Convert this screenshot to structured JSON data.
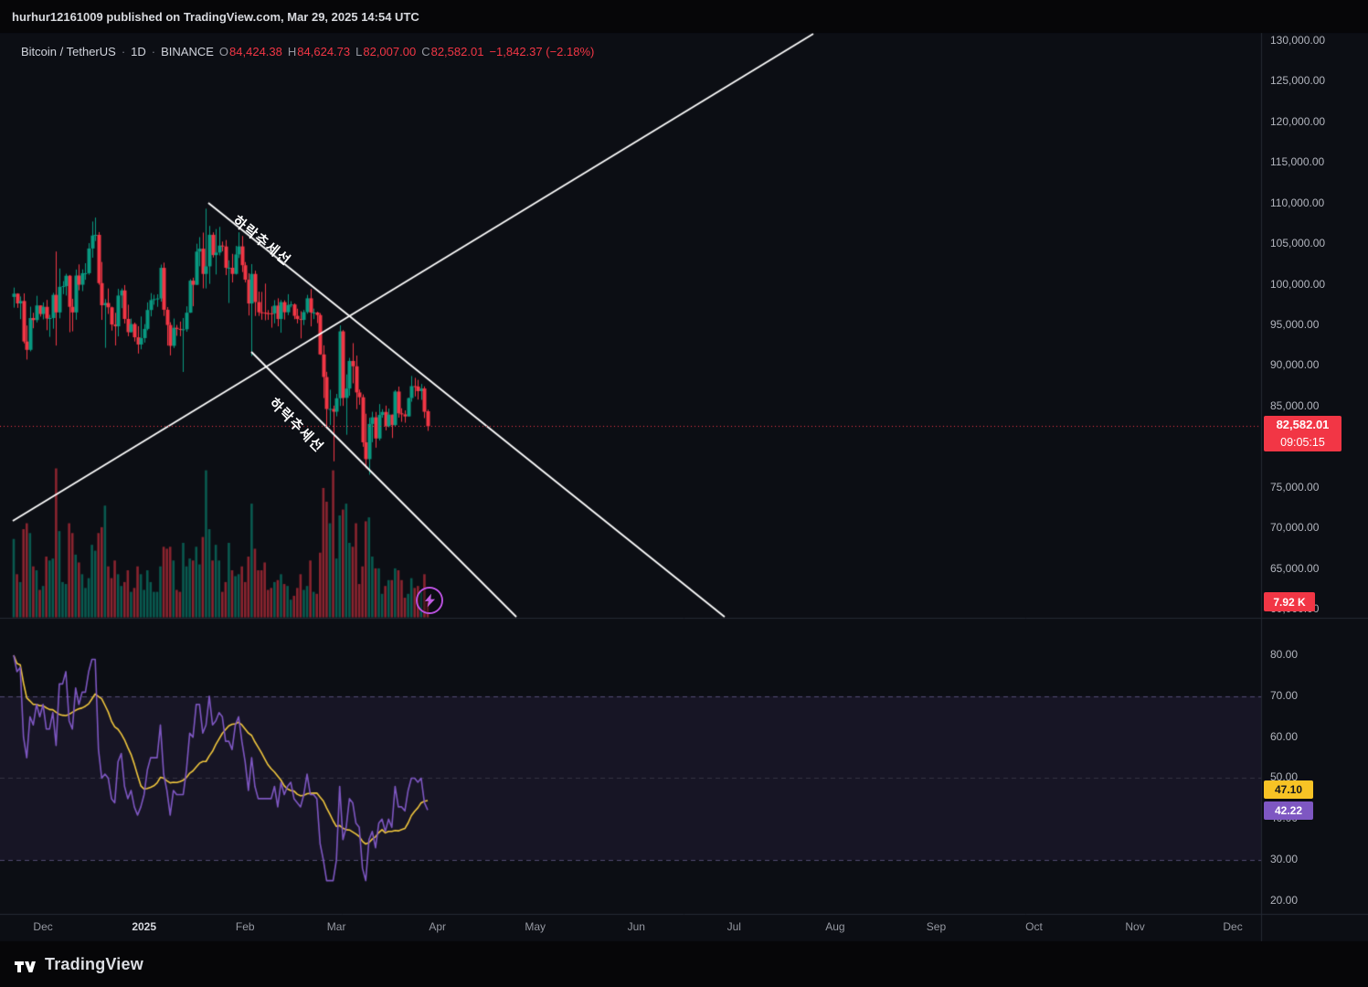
{
  "meta": {
    "published_line": "hurhur12161009 published on TradingView.com, Mar 29, 2025 14:54 UTC",
    "brand": "TradingView"
  },
  "header": {
    "symbol": "Bitcoin / TetherUS",
    "separator": "·",
    "interval": "1D",
    "exchange": "BINANCE",
    "ohlc": {
      "o_label": "O",
      "o_value": "84,424.38",
      "h_label": "H",
      "h_value": "84,624.73",
      "l_label": "L",
      "l_value": "82,007.00",
      "c_label": "C",
      "c_value": "82,582.01",
      "change": "−1,842.37 (−2.18%)"
    }
  },
  "badges": {
    "price": {
      "value": "82,582.01",
      "countdown": "09:05:15",
      "bg": "#f23645"
    },
    "volume": {
      "value": "7.92 K",
      "bg": "#f23645"
    },
    "rsi_ma": {
      "value": "47.10",
      "bg": "#f7c325"
    },
    "rsi": {
      "value": "42.22",
      "bg": "#7e57c2"
    }
  },
  "price_axis": {
    "labels": [
      "130,000.00",
      "125,000.00",
      "120,000.00",
      "115,000.00",
      "110,000.00",
      "105,000.00",
      "100,000.00",
      "95,000.00",
      "90,000.00",
      "85,000.00",
      "80,000.00",
      "75,000.00",
      "70,000.00",
      "65,000.00",
      "60,000.00"
    ]
  },
  "rsi_axis": {
    "labels": [
      "80.00",
      "70.00",
      "60.00",
      "50.00",
      "40.00",
      "30.00",
      "20.00"
    ]
  },
  "time_axis": {
    "labels": [
      "Dec",
      "2025",
      "Feb",
      "Mar",
      "Apr",
      "May",
      "Jun",
      "Jul",
      "Aug",
      "Sep",
      "Oct",
      "Nov",
      "Dec"
    ],
    "tick_days": [
      9,
      40,
      71,
      99,
      130,
      160,
      191,
      221,
      252,
      283,
      313,
      344,
      374
    ]
  },
  "annotations": {
    "trendline_labels": [
      {
        "text": "하락추세선",
        "day": 76.3,
        "price": 105463,
        "rotation_deg": 39
      },
      {
        "text": "하락추세선",
        "day": 86.9,
        "price": 82738,
        "rotation_deg": 45
      }
    ],
    "lightning": {
      "day": 127.6,
      "price": 61138
    }
  },
  "chart_data": {
    "type": "candlestick",
    "title": "Bitcoin / TetherUS · 1D · BINANCE",
    "start_date": "2024-11-22",
    "interval": "1D",
    "current_price": 82582.01,
    "price_axis_range_visible": [
      59000,
      131000
    ],
    "panes": [
      "price+volume",
      "RSI(14) with MA"
    ],
    "columns": [
      "open",
      "high",
      "low",
      "close",
      "volume_k"
    ],
    "candles": [
      [
        98500,
        99650,
        97180,
        98900,
        40
      ],
      [
        98900,
        98950,
        97150,
        97700,
        22
      ],
      [
        97700,
        98560,
        95760,
        98000,
        18
      ],
      [
        98000,
        98935,
        92780,
        93010,
        45
      ],
      [
        93010,
        94980,
        90790,
        91985,
        48
      ],
      [
        91985,
        97300,
        91800,
        95900,
        43
      ],
      [
        95900,
        96550,
        94640,
        95650,
        26
      ],
      [
        95650,
        98640,
        95360,
        97450,
        24
      ],
      [
        97450,
        97460,
        96080,
        96400,
        14
      ],
      [
        96400,
        97830,
        95740,
        97280,
        16
      ],
      [
        97280,
        98130,
        94400,
        95840,
        31
      ],
      [
        95840,
        96300,
        93580,
        95900,
        29
      ],
      [
        95900,
        99000,
        94580,
        98750,
        30
      ],
      [
        98750,
        104090,
        92510,
        96590,
        76
      ],
      [
        96590,
        102000,
        95860,
        99740,
        44
      ],
      [
        99740,
        100440,
        98840,
        99830,
        18
      ],
      [
        99830,
        101350,
        98660,
        101110,
        17
      ],
      [
        101110,
        101200,
        94150,
        97280,
        48
      ],
      [
        97280,
        98270,
        94260,
        96590,
        43
      ],
      [
        96590,
        101880,
        95690,
        101130,
        32
      ],
      [
        101130,
        102500,
        99310,
        100000,
        28
      ],
      [
        100000,
        101890,
        99210,
        101420,
        22
      ],
      [
        101420,
        102650,
        100610,
        101420,
        15
      ],
      [
        101420,
        105120,
        101230,
        104460,
        20
      ],
      [
        104460,
        107780,
        103330,
        106060,
        37
      ],
      [
        106060,
        108270,
        105380,
        106140,
        34
      ],
      [
        106140,
        106480,
        100000,
        100200,
        43
      ],
      [
        100200,
        102800,
        95670,
        97470,
        46
      ],
      [
        97470,
        98230,
        92230,
        97750,
        57
      ],
      [
        97750,
        99540,
        96400,
        97220,
        26
      ],
      [
        97220,
        97300,
        94350,
        95100,
        20
      ],
      [
        95100,
        96540,
        92520,
        94880,
        29
      ],
      [
        94880,
        99490,
        93640,
        98670,
        22
      ],
      [
        98670,
        99550,
        97110,
        99300,
        16
      ],
      [
        99300,
        99960,
        95230,
        95790,
        18
      ],
      [
        95790,
        97540,
        93660,
        94160,
        24
      ],
      [
        94160,
        95830,
        94110,
        95160,
        13
      ],
      [
        95160,
        95340,
        93010,
        93530,
        15
      ],
      [
        93530,
        94900,
        91530,
        92640,
        26
      ],
      [
        92640,
        96090,
        92050,
        93430,
        22
      ],
      [
        93430,
        95150,
        92880,
        94560,
        14
      ],
      [
        94560,
        97830,
        94390,
        96890,
        24
      ],
      [
        96890,
        98970,
        96100,
        98110,
        18
      ],
      [
        98110,
        98770,
        97540,
        98220,
        13
      ],
      [
        98220,
        98830,
        97280,
        98310,
        13
      ],
      [
        98310,
        102480,
        97920,
        102080,
        26
      ],
      [
        102080,
        102720,
        96160,
        96920,
        36
      ],
      [
        96920,
        97250,
        92510,
        95040,
        35
      ],
      [
        95040,
        95380,
        91300,
        92480,
        36
      ],
      [
        92480,
        95840,
        92210,
        94700,
        29
      ],
      [
        94700,
        95050,
        93710,
        94560,
        14
      ],
      [
        94560,
        95470,
        93660,
        94480,
        13
      ],
      [
        94480,
        95900,
        89260,
        94510,
        38
      ],
      [
        94510,
        97340,
        94210,
        96560,
        26
      ],
      [
        96560,
        100680,
        96530,
        100500,
        30
      ],
      [
        100500,
        100870,
        97350,
        99990,
        29
      ],
      [
        99990,
        105050,
        99950,
        104080,
        36
      ],
      [
        104080,
        105860,
        102270,
        104440,
        27
      ],
      [
        104440,
        106420,
        99550,
        101330,
        41
      ],
      [
        101330,
        109360,
        99540,
        102260,
        75
      ],
      [
        102260,
        107240,
        100100,
        106150,
        45
      ],
      [
        106150,
        106450,
        103350,
        103650,
        29
      ],
      [
        103650,
        106850,
        101260,
        103960,
        37
      ],
      [
        103960,
        107120,
        103600,
        104820,
        29
      ],
      [
        104820,
        105310,
        104120,
        104710,
        13
      ],
      [
        104710,
        105500,
        101180,
        102080,
        18
      ],
      [
        102080,
        103000,
        97750,
        102090,
        38
      ],
      [
        102090,
        103800,
        100280,
        101330,
        24
      ],
      [
        101330,
        104780,
        101250,
        103730,
        21
      ],
      [
        103730,
        106460,
        103290,
        104720,
        22
      ],
      [
        104720,
        106000,
        101560,
        102400,
        26
      ],
      [
        102400,
        102790,
        100280,
        100620,
        18
      ],
      [
        100620,
        101420,
        96210,
        97690,
        31
      ],
      [
        97690,
        102540,
        91230,
        101330,
        58
      ],
      [
        101330,
        101730,
        96150,
        97870,
        35
      ],
      [
        97870,
        99150,
        96160,
        96610,
        24
      ],
      [
        96610,
        99120,
        95690,
        96560,
        24
      ],
      [
        96560,
        100140,
        95620,
        96500,
        28
      ],
      [
        96500,
        96880,
        95680,
        96480,
        14
      ],
      [
        96480,
        97330,
        94710,
        96470,
        15
      ],
      [
        96470,
        98100,
        95250,
        97430,
        18
      ],
      [
        97430,
        98330,
        94880,
        95780,
        19
      ],
      [
        95780,
        98120,
        94090,
        97860,
        22
      ],
      [
        97860,
        98080,
        95710,
        96610,
        17
      ],
      [
        96610,
        98840,
        96250,
        97500,
        16
      ],
      [
        97500,
        97970,
        97220,
        97570,
        9
      ],
      [
        97570,
        97700,
        95750,
        96170,
        11
      ],
      [
        96170,
        97050,
        95240,
        95780,
        15
      ],
      [
        95780,
        96740,
        93390,
        95670,
        22
      ],
      [
        95670,
        96900,
        95030,
        96630,
        14
      ],
      [
        96630,
        98750,
        96430,
        98330,
        16
      ],
      [
        98330,
        99470,
        94870,
        96580,
        29
      ],
      [
        96580,
        97060,
        95770,
        96580,
        13
      ],
      [
        96580,
        96670,
        95270,
        96270,
        12
      ],
      [
        96270,
        96500,
        91360,
        91420,
        33
      ],
      [
        91420,
        92540,
        86050,
        88640,
        66
      ],
      [
        88640,
        89280,
        82260,
        84700,
        59
      ],
      [
        84700,
        87080,
        82720,
        84710,
        48
      ],
      [
        84710,
        85120,
        78260,
        84370,
        75
      ],
      [
        84370,
        86560,
        83800,
        86030,
        30
      ],
      [
        86030,
        95000,
        85070,
        94260,
        52
      ],
      [
        94260,
        94420,
        85080,
        86070,
        55
      ],
      [
        86070,
        88960,
        81530,
        87220,
        58
      ],
      [
        87220,
        91000,
        86330,
        90620,
        38
      ],
      [
        90620,
        92810,
        87860,
        89960,
        36
      ],
      [
        89960,
        91280,
        84680,
        86740,
        48
      ],
      [
        86740,
        87100,
        85220,
        86150,
        17
      ],
      [
        86150,
        86500,
        80050,
        80600,
        26
      ],
      [
        80600,
        84120,
        77420,
        78530,
        49
      ],
      [
        78530,
        83620,
        76610,
        82860,
        51
      ],
      [
        82860,
        84360,
        80610,
        83680,
        31
      ],
      [
        83680,
        84340,
        79940,
        81070,
        25
      ],
      [
        81070,
        85310,
        80820,
        83970,
        25
      ],
      [
        83970,
        84680,
        83630,
        84340,
        12
      ],
      [
        84340,
        85120,
        82070,
        82580,
        16
      ],
      [
        82580,
        84760,
        82440,
        84010,
        19
      ],
      [
        84010,
        84020,
        81130,
        82720,
        19
      ],
      [
        82720,
        87030,
        82540,
        86850,
        25
      ],
      [
        86850,
        87460,
        83640,
        84170,
        24
      ],
      [
        84170,
        84790,
        83120,
        84040,
        19
      ],
      [
        84040,
        84530,
        83010,
        83790,
        10
      ],
      [
        83790,
        86100,
        83770,
        86050,
        12
      ],
      [
        86050,
        88770,
        85600,
        87520,
        20
      ],
      [
        87520,
        88540,
        86250,
        87470,
        15
      ],
      [
        87470,
        88290,
        85860,
        86900,
        16
      ],
      [
        86900,
        87780,
        85830,
        87230,
        13
      ],
      [
        87230,
        87490,
        83580,
        84360,
        22
      ],
      [
        84424.38,
        84624.73,
        82007,
        82582.01,
        7.92
      ]
    ],
    "rsi": [
      80,
      76,
      77,
      60,
      55,
      65,
      63,
      68,
      65,
      68,
      62,
      62,
      66,
      58,
      73,
      73,
      76,
      64,
      62,
      72,
      68,
      71,
      71,
      76,
      79,
      79,
      57,
      50,
      51,
      50,
      45,
      44,
      54,
      56,
      48,
      45,
      47,
      43,
      41,
      43,
      46,
      52,
      55,
      55,
      55,
      63,
      51,
      47,
      41,
      47,
      46,
      46,
      46,
      52,
      61,
      60,
      68,
      68,
      61,
      63,
      70,
      63,
      64,
      66,
      65,
      59,
      59,
      57,
      63,
      65,
      59,
      54,
      47,
      55,
      48,
      45,
      45,
      45,
      45,
      45,
      48,
      43,
      49,
      46,
      48,
      49,
      45,
      44,
      43,
      46,
      51,
      46,
      46,
      45,
      34,
      30,
      25,
      25,
      25,
      30,
      48,
      35,
      38,
      45,
      44,
      39,
      38,
      28,
      25,
      35,
      37,
      33,
      39,
      40,
      37,
      40,
      38,
      48,
      43,
      43,
      42,
      47,
      50,
      50,
      49,
      50,
      44,
      42.22
    ],
    "rsi_last": 42.22,
    "rsi_ma_last": 47.1,
    "rsi_levels": [
      70,
      50,
      30
    ],
    "trendlines": [
      {
        "name": "ascending-support",
        "d1": -0.3,
        "p1": 70925,
        "d2": 245.3,
        "p2": 130888
      },
      {
        "name": "descending-resistance-upper",
        "d1": 59.7,
        "p1": 110075,
        "d2": 218.1,
        "p2": 59112
      },
      {
        "name": "descending-resistance-lower",
        "d1": 72.9,
        "p1": 91737,
        "d2": 154.2,
        "p2": 59112
      }
    ],
    "style": {
      "up_color": "#089981",
      "down_color": "#f23645",
      "volume_up": "rgba(8,153,129,0.55)",
      "volume_down": "rgba(242,54,69,0.55)",
      "rsi_color": "#7e57c2",
      "rsi_ma_color": "#f0c63d",
      "trendline_color": "#ffffff",
      "band_fill": "rgba(126,87,194,0.10)",
      "current_price_color": "#f23645",
      "background": "#0c0e14"
    }
  }
}
